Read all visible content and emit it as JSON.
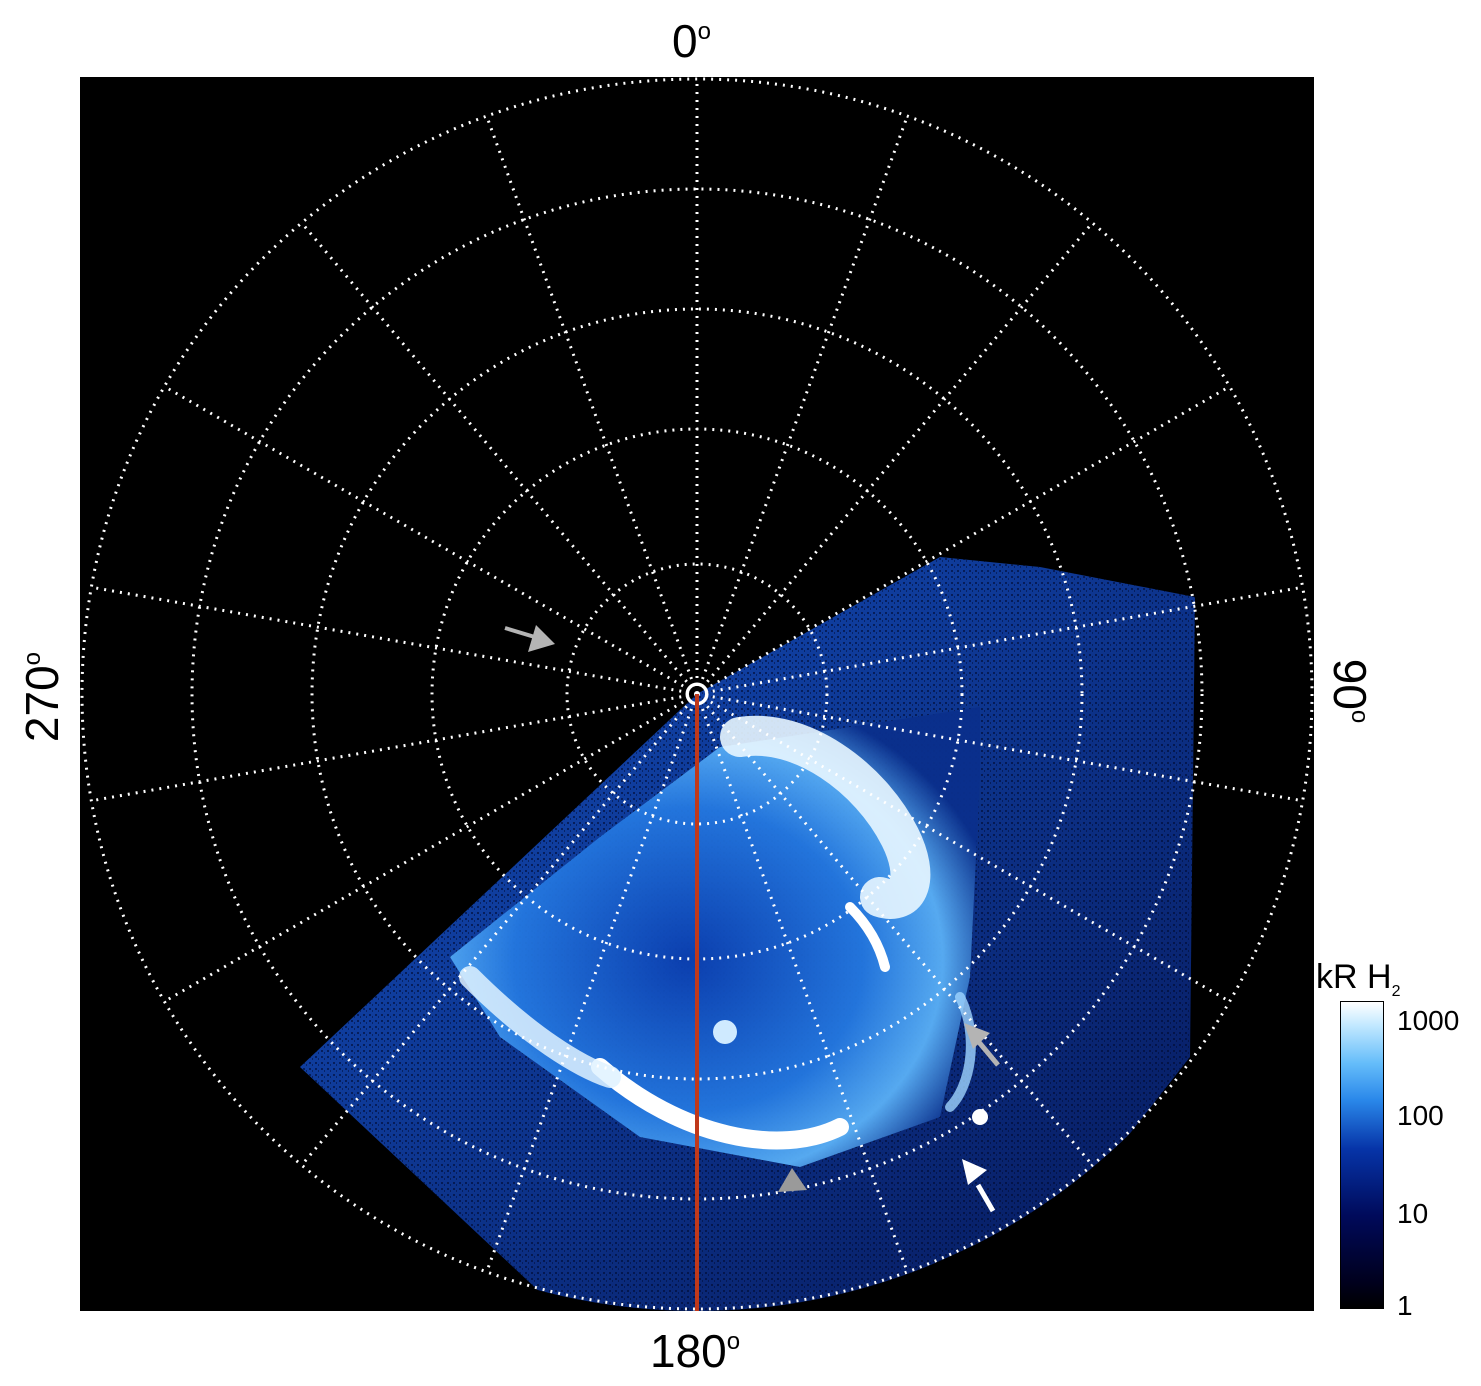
{
  "labels": {
    "top": "0",
    "bottom": "180",
    "left": "270",
    "right": "90",
    "degree_symbol": "o"
  },
  "colorbar": {
    "title": "kR H",
    "title_subscript": "2",
    "ticks": [
      "1000",
      "100",
      "10",
      "1"
    ],
    "colors": [
      "#000000",
      "#000a5a",
      "#0634a8",
      "#2a88ea",
      "#65bdfa",
      "#ffffff"
    ]
  },
  "colors": {
    "background": "#000000",
    "grid": "#ffffff",
    "meridian_line": "#c0391b",
    "arrow_gray": "#b4b4b4",
    "arrow_white": "#ffffff"
  },
  "description_icons": [
    "arrow-icon",
    "triangle-marker-icon"
  ]
}
